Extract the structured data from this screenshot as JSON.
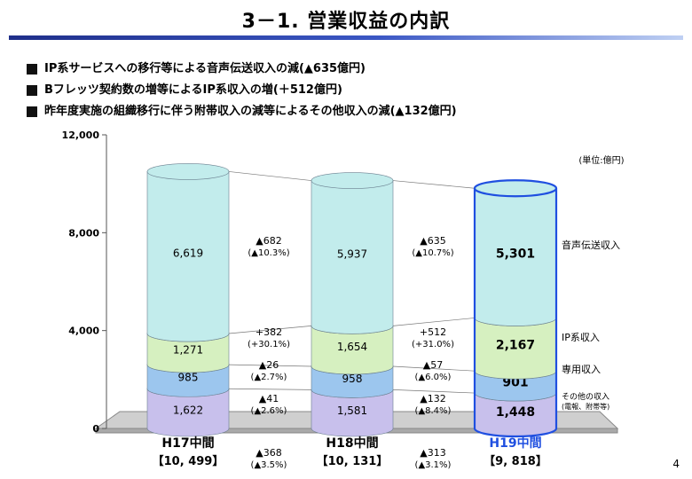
{
  "title": "3－1. 営業収益の内訳",
  "bullets": [
    "IP系サービスへの移行等による音声伝送収入の減(▲635億円)",
    "Bフレッツ契約数の増等によるIP系収入の増(＋512億円)",
    "昨年度実施の組織移行に伴う附帯収入の減等によるその他収入の減(▲132億円)"
  ],
  "page_number": "4",
  "chart_data": {
    "type": "bar",
    "stacked": true,
    "unit_label": "(単位:億円)",
    "ylim": [
      0,
      12000
    ],
    "yticks": [
      "12,000",
      "8,000",
      "4,000",
      "0"
    ],
    "categories": [
      "H17中間",
      "H18中間",
      "H19中間"
    ],
    "totals": [
      "【10, 499】",
      "【10, 131】",
      "【9, 818】"
    ],
    "highlight_category": "H19中間",
    "series": [
      {
        "name": "その他の収入(電報、附帯等)",
        "values": [
          1622,
          1581,
          1448
        ],
        "labels": [
          "1,622",
          "1,581",
          "1,448"
        ],
        "color": "#c8c0ec"
      },
      {
        "name": "専用収入",
        "values": [
          985,
          958,
          901
        ],
        "labels": [
          "985",
          "958",
          "901"
        ],
        "color": "#9cc6ee"
      },
      {
        "name": "IP系収入",
        "values": [
          1271,
          1654,
          2167
        ],
        "labels": [
          "1,271",
          "1,654",
          "2,167"
        ],
        "color": "#d6f0c0"
      },
      {
        "name": "音声伝送収入",
        "values": [
          6619,
          5937,
          5301
        ],
        "labels": [
          "6,619",
          "5,937",
          "5,301"
        ],
        "color": "#c2ecec"
      }
    ],
    "changes": [
      {
        "series": "音声伝送収入",
        "h18": [
          "▲682",
          "(▲10.3%)"
        ],
        "h19": [
          "▲635",
          "(▲10.7%)"
        ]
      },
      {
        "series": "IP系収入",
        "h18": [
          "+382",
          "(+30.1%)"
        ],
        "h19": [
          "+512",
          "(+31.0%)"
        ]
      },
      {
        "series": "専用収入",
        "h18": [
          "▲26",
          "(▲2.7%)"
        ],
        "h19": [
          "▲57",
          "(▲6.0%)"
        ]
      },
      {
        "series": "その他の収入",
        "h18": [
          "▲41",
          "(▲2.6%)"
        ],
        "h19": [
          "▲132",
          "(▲8.4%)"
        ]
      }
    ],
    "total_changes": {
      "h18": [
        "▲368",
        "(▲3.5%)"
      ],
      "h19": [
        "▲313",
        "(▲3.1%)"
      ]
    },
    "legend_labels": [
      "音声伝送収入",
      "IP系収入",
      "専用収入",
      "その他の収入",
      "(電報、附帯等)"
    ],
    "colors": {
      "highlight": "#1f4fe0",
      "highlight_text": "#1f4fe0"
    }
  }
}
